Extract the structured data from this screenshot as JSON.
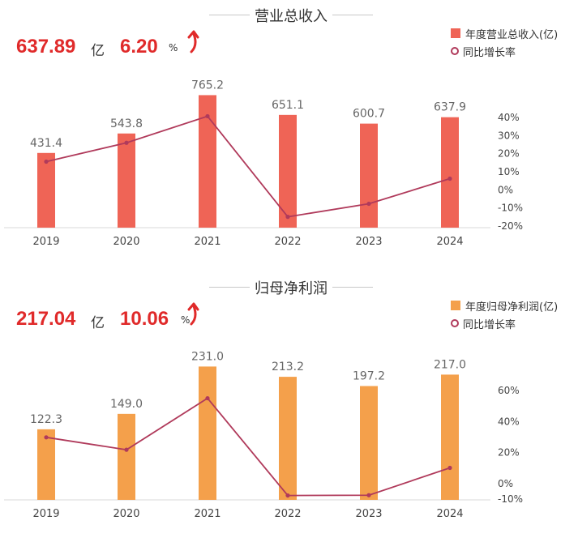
{
  "chart_data": [
    {
      "type": "bar",
      "title": "营业总收入",
      "headline_value": "637.89",
      "headline_unit": "亿",
      "growth_value": "6.20",
      "growth_unit": "%",
      "categories": [
        "2019",
        "2020",
        "2021",
        "2022",
        "2023",
        "2024"
      ],
      "series": [
        {
          "name": "年度营业总收入(亿)",
          "kind": "bar",
          "color": "#ef6456",
          "values": [
            431.4,
            543.8,
            765.2,
            651.1,
            600.7,
            637.9
          ]
        },
        {
          "name": "同比增长率",
          "kind": "line",
          "color": "#b03a5b",
          "axis": "right",
          "values": [
            15.6,
            26.0,
            40.7,
            -14.9,
            -7.7,
            6.2
          ]
        }
      ],
      "value_labels": [
        "431.4",
        "543.8",
        "765.2",
        "651.1",
        "600.7",
        "637.9"
      ],
      "y_left_lim": [
        0,
        800
      ],
      "y_right_lim": [
        -20,
        50
      ],
      "y_right_ticks": [
        "40%",
        "30%",
        "20%",
        "10%",
        "0%",
        "-10%",
        "-20%"
      ],
      "legend": "top-right"
    },
    {
      "type": "bar",
      "title": "归母净利润",
      "headline_value": "217.04",
      "headline_unit": "亿",
      "growth_value": "10.06",
      "growth_unit": "%",
      "categories": [
        "2019",
        "2020",
        "2021",
        "2022",
        "2023",
        "2024"
      ],
      "series": [
        {
          "name": "年度归母净利润(亿)",
          "kind": "bar",
          "color": "#f4a04b",
          "values": [
            122.3,
            149.0,
            231.0,
            213.2,
            197.2,
            217.0
          ]
        },
        {
          "name": "同比增长率",
          "kind": "line",
          "color": "#b03a5b",
          "axis": "right",
          "values": [
            29.8,
            21.8,
            55.0,
            -7.7,
            -7.5,
            10.1
          ]
        }
      ],
      "value_labels": [
        "122.3",
        "149.0",
        "231.0",
        "213.2",
        "197.2",
        "217.0"
      ],
      "y_left_lim": [
        0,
        240
      ],
      "y_right_lim": [
        -10,
        60
      ],
      "y_right_ticks": [
        "60%",
        "40%",
        "20%",
        "0%",
        "-10%"
      ],
      "legend": "top-right"
    }
  ]
}
